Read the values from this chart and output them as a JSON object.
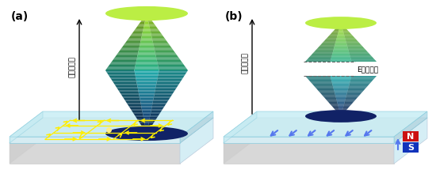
{
  "fig_width": 5.5,
  "fig_height": 2.3,
  "dpi": 100,
  "bg_color": "#ffffff",
  "label_a": "(a)",
  "label_b": "(b)",
  "energy_label": "エネルギー",
  "gap_label": "Eギャップ",
  "north_label": "N",
  "south_label": "S",
  "arrow_color_a": "#ffee00",
  "arrow_color_b": "#5577ee",
  "magnet_n_color": "#cc1111",
  "magnet_s_color": "#1133bb",
  "gap_line_color": "#666666",
  "slab_top_color": "#aadde8",
  "slab_glass_color": "#c8eef5",
  "slab_side_light": "#d5eef5",
  "slab_side_dark": "#b0d8e5",
  "slab_bottom_color": "#e0e0e0",
  "slab_front_color": "#d8d8d8"
}
